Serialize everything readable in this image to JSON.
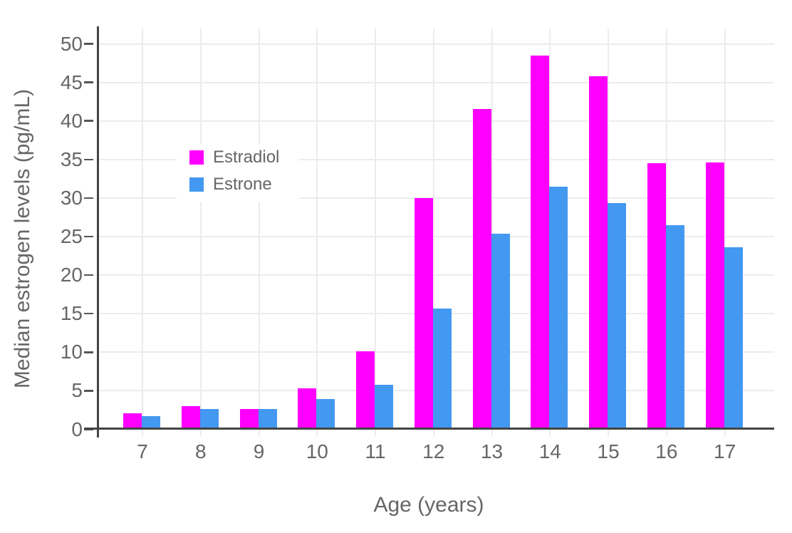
{
  "chart_data": {
    "type": "bar",
    "title": "",
    "xlabel": "Age (years)",
    "ylabel": "Median estrogen levels (pg/mL)",
    "categories": [
      "7",
      "8",
      "9",
      "10",
      "11",
      "12",
      "13",
      "14",
      "15",
      "16",
      "17"
    ],
    "series": [
      {
        "name": "Estradiol",
        "color": "#ff00ff",
        "values": [
          2.1,
          3.0,
          2.6,
          5.3,
          10.1,
          30.0,
          41.5,
          48.5,
          45.8,
          34.5,
          34.6
        ]
      },
      {
        "name": "Estrone",
        "color": "#4398f0",
        "values": [
          1.7,
          2.6,
          2.6,
          3.9,
          5.8,
          15.7,
          25.4,
          31.5,
          29.3,
          26.5,
          23.6
        ]
      }
    ],
    "ylim": [
      0,
      52.5
    ],
    "yticks": [
      0,
      5,
      10,
      15,
      20,
      25,
      30,
      35,
      40,
      45,
      50
    ],
    "grid": true,
    "legend_position": "inside-upper-left"
  },
  "colors": {
    "background": "#ffffff",
    "grid": "#ececec",
    "axis": "#444444",
    "tick_text": "#666666",
    "estradiol": "#ff00ff",
    "estrone": "#4398f0"
  }
}
